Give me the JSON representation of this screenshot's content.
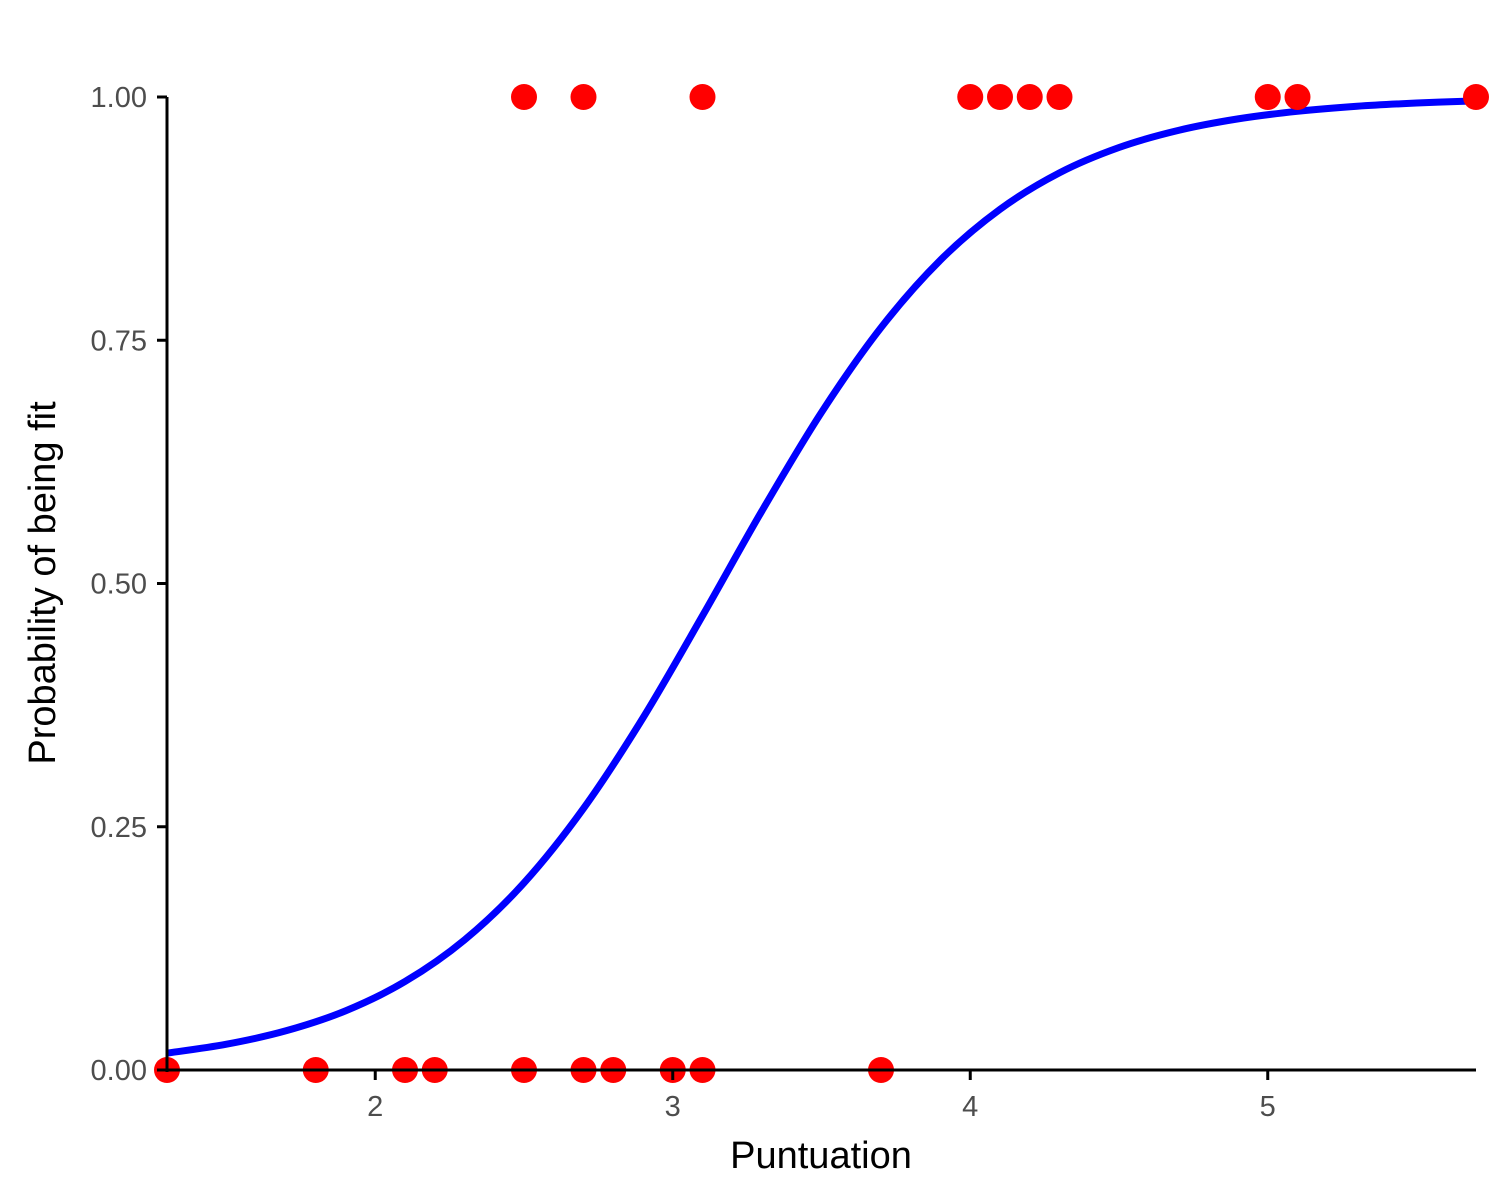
{
  "chart_data": {
    "type": "scatter",
    "title": "",
    "xlabel": "Puntuation",
    "ylabel": "Probability of being fit",
    "xlim": [
      1.3,
      5.7
    ],
    "ylim": [
      0,
      1
    ],
    "xticks": [
      2,
      3,
      4,
      5
    ],
    "xtick_labels": [
      "2",
      "3",
      "4",
      "5"
    ],
    "yticks": [
      0,
      0.25,
      0.5,
      0.75,
      1
    ],
    "ytick_labels": [
      "0.00",
      "0.25",
      "0.50",
      "0.75",
      "1.00"
    ],
    "grid": false,
    "point_color": "#ff0000",
    "curve_color": "#0000ff",
    "points": [
      {
        "x": 1.3,
        "y": 0
      },
      {
        "x": 1.8,
        "y": 0
      },
      {
        "x": 2.1,
        "y": 0
      },
      {
        "x": 2.2,
        "y": 0
      },
      {
        "x": 2.5,
        "y": 0
      },
      {
        "x": 2.7,
        "y": 0
      },
      {
        "x": 2.8,
        "y": 0
      },
      {
        "x": 3.0,
        "y": 0
      },
      {
        "x": 3.1,
        "y": 0
      },
      {
        "x": 3.7,
        "y": 0
      },
      {
        "x": 2.5,
        "y": 1
      },
      {
        "x": 2.7,
        "y": 1
      },
      {
        "x": 3.1,
        "y": 1
      },
      {
        "x": 4.0,
        "y": 1
      },
      {
        "x": 4.1,
        "y": 1
      },
      {
        "x": 4.2,
        "y": 1
      },
      {
        "x": 4.3,
        "y": 1
      },
      {
        "x": 5.0,
        "y": 1
      },
      {
        "x": 5.1,
        "y": 1
      },
      {
        "x": 5.7,
        "y": 1
      }
    ],
    "curve": {
      "type": "logistic",
      "x": [
        1.3,
        1.5,
        1.7,
        1.9,
        2.1,
        2.3,
        2.5,
        2.7,
        2.9,
        3.1,
        3.3,
        3.5,
        3.7,
        3.9,
        4.1,
        4.3,
        4.5,
        4.7,
        4.9,
        5.1,
        5.3,
        5.5,
        5.7
      ],
      "y": [
        0.0173,
        0.0265,
        0.0403,
        0.0608,
        0.0909,
        0.1337,
        0.1923,
        0.2688,
        0.3619,
        0.4668,
        0.5747,
        0.6759,
        0.763,
        0.8325,
        0.8846,
        0.9221,
        0.9481,
        0.9657,
        0.9775,
        0.9853,
        0.9905,
        0.9938,
        0.996
      ]
    }
  }
}
